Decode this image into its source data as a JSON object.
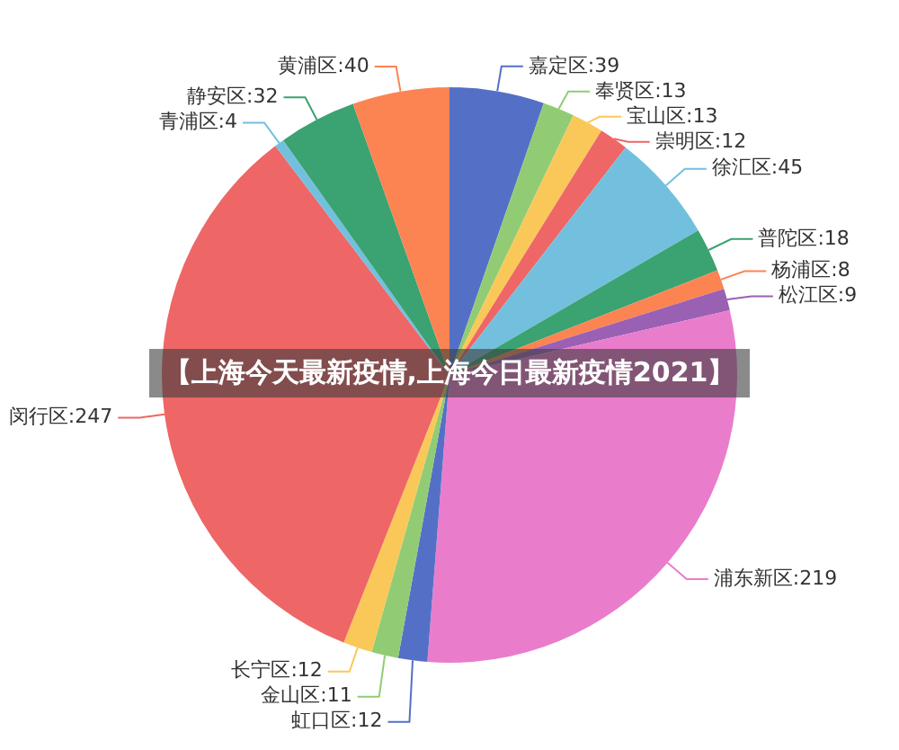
{
  "chart_data": {
    "type": "pie",
    "title": "【上海今天最新疫情,上海今日最新疫情2021】",
    "categories": [
      "嘉定区",
      "奉贤区",
      "宝山区",
      "崇明区",
      "徐汇区",
      "普陀区",
      "杨浦区",
      "松江区",
      "浦东新区",
      "虹口区",
      "金山区",
      "长宁区",
      "闵行区",
      "青浦区",
      "静安区",
      "黄浦区"
    ],
    "values": [
      39,
      13,
      13,
      12,
      45,
      18,
      8,
      9,
      219,
      12,
      11,
      12,
      247,
      4,
      32,
      40
    ],
    "colors": [
      "#5470c6",
      "#91cc75",
      "#fac858",
      "#ee6666",
      "#73c0de",
      "#3ba272",
      "#fc8452",
      "#9a60b4",
      "#ea7ccc",
      "#5470c6",
      "#91cc75",
      "#fac858",
      "#ee6666",
      "#73c0de",
      "#3ba272",
      "#fc8452"
    ],
    "value_labels": [
      ":39",
      ":13",
      ":13",
      ":12",
      ":45",
      ":18",
      ":8",
      ":9",
      ":219",
      ":12",
      ":11",
      ":12",
      ":247",
      ":4",
      ":32",
      ":40"
    ],
    "legend": false
  }
}
